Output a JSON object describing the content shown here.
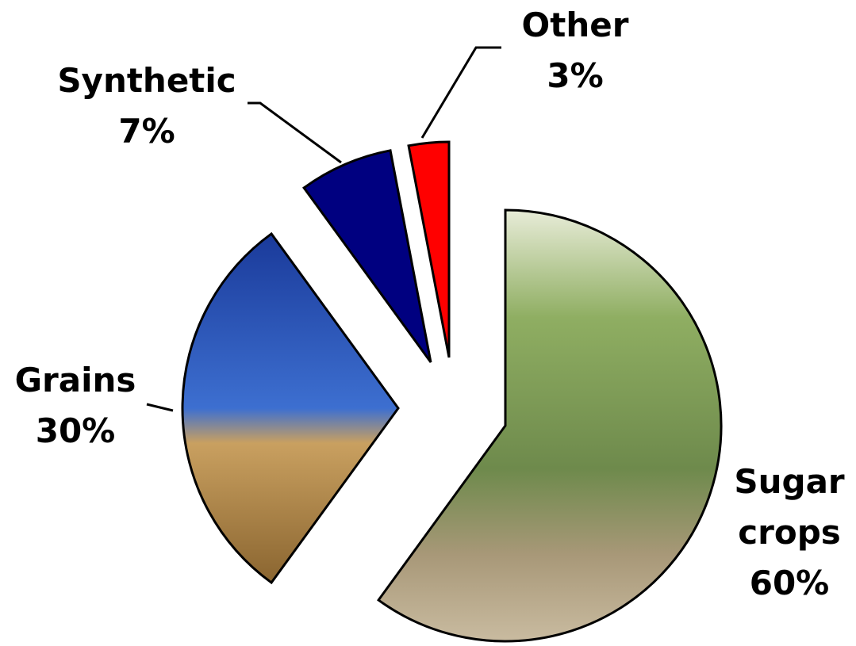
{
  "chart_data": {
    "type": "pie",
    "categories": [
      "Sugar crops",
      "Grains",
      "Synthetic",
      "Other"
    ],
    "values": [
      60,
      30,
      7,
      3
    ],
    "value_labels": [
      "60%",
      "30%",
      "7%",
      "3%"
    ],
    "colors": [
      "#7f9a5a",
      "#c9a56a",
      "#000080",
      "#ff0000"
    ]
  }
}
